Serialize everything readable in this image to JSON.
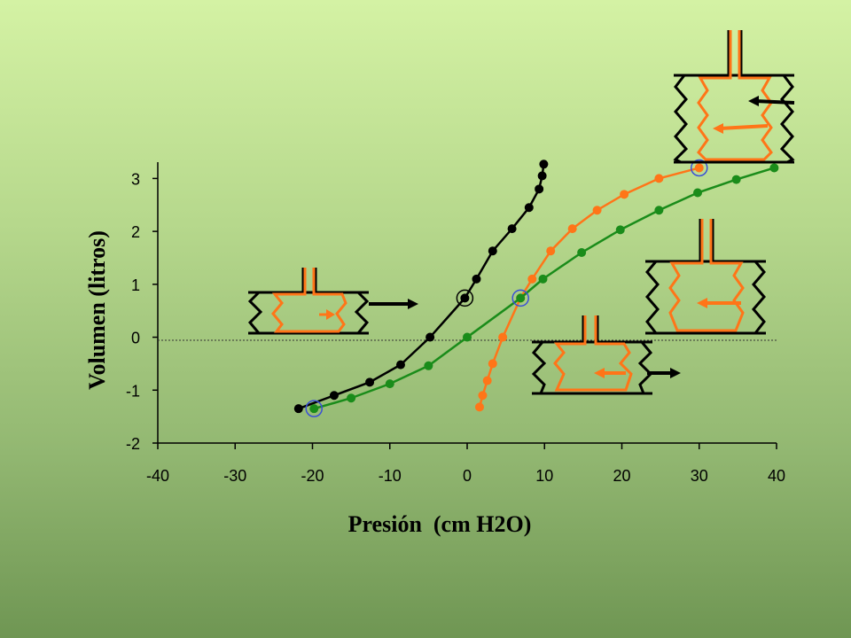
{
  "chart_data": {
    "type": "line",
    "xlabel": "Presión  (cm H2O)",
    "ylabel": "Volumen  (litros)",
    "xlim": [
      -40,
      40
    ],
    "ylim": [
      -2,
      3.35
    ],
    "x_ticks": [
      "-40",
      "-30",
      "-20",
      "-10",
      "0",
      "10",
      "20",
      "30",
      "40"
    ],
    "y_ticks": [
      "3",
      "2",
      "1",
      "0",
      "-1",
      "-2"
    ],
    "x_tick_values": [
      -40,
      -30,
      -20,
      -10,
      0,
      10,
      20,
      30,
      40
    ],
    "y_tick_values": [
      3,
      2,
      1,
      0,
      -1,
      -2
    ],
    "grid": false,
    "reference_line_y": 0,
    "series": [
      {
        "color": "#000000",
        "points": [
          [
            -21.8,
            -1.35
          ],
          [
            -17.2,
            -1.1
          ],
          [
            -12.6,
            -0.85
          ],
          [
            -8.6,
            -0.52
          ],
          [
            -4.8,
            0
          ],
          [
            -0.3,
            0.74
          ],
          [
            1.2,
            1.1
          ],
          [
            3.3,
            1.63
          ],
          [
            5.8,
            2.05
          ],
          [
            8.0,
            2.45
          ],
          [
            9.3,
            2.8
          ],
          [
            9.7,
            3.05
          ],
          [
            9.9,
            3.27
          ]
        ]
      },
      {
        "color": "#ff7518",
        "points": [
          [
            1.6,
            -1.32
          ],
          [
            2.0,
            -1.1
          ],
          [
            2.6,
            -0.82
          ],
          [
            3.3,
            -0.5
          ],
          [
            4.6,
            0
          ],
          [
            6.9,
            0.74
          ],
          [
            8.4,
            1.1
          ],
          [
            10.8,
            1.63
          ],
          [
            13.6,
            2.05
          ],
          [
            16.8,
            2.4
          ],
          [
            20.3,
            2.7
          ],
          [
            24.8,
            3.0
          ],
          [
            30.0,
            3.2
          ]
        ]
      },
      {
        "color": "#1a8c1a",
        "points": [
          [
            -19.8,
            -1.35
          ],
          [
            -15.0,
            -1.15
          ],
          [
            -10.0,
            -0.88
          ],
          [
            -5.0,
            -0.54
          ],
          [
            0,
            0
          ],
          [
            6.9,
            0.74
          ],
          [
            9.8,
            1.1
          ],
          [
            14.8,
            1.6
          ],
          [
            19.8,
            2.03
          ],
          [
            24.8,
            2.4
          ],
          [
            29.8,
            2.73
          ],
          [
            34.8,
            2.98
          ],
          [
            39.7,
            3.2
          ]
        ]
      }
    ],
    "marked_points": [
      {
        "x": -0.3,
        "y": 0.74,
        "color": "#000000"
      },
      {
        "x": 6.9,
        "y": 0.74,
        "color": "#3a4fd6"
      },
      {
        "x": 30.0,
        "y": 3.2,
        "color": "#3a4fd6"
      },
      {
        "x": -19.8,
        "y": -1.35,
        "color": "#3a4fd6"
      }
    ],
    "colors": {
      "wall": "#000000",
      "lung": "#ff7518",
      "arrow_lung": "#ff7518",
      "arrow_wall": "#000000"
    }
  }
}
